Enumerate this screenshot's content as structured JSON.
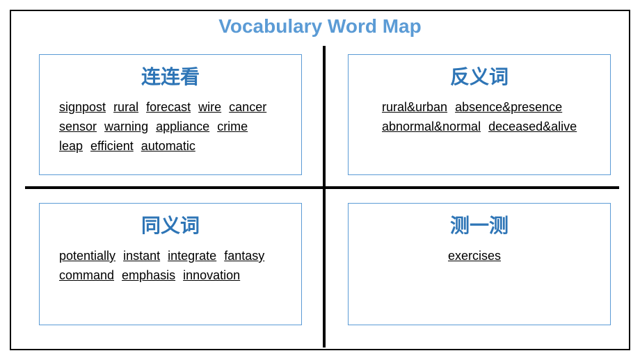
{
  "title": "Vocabulary Word Map",
  "title_color": "#5b9bd5",
  "box_border_color": "#5b9bd5",
  "quad_title_color": "#2e75b6",
  "cross_color": "#000000",
  "outer_border_color": "#000000",
  "background_color": "#ffffff",
  "text_color": "#000000",
  "title_fontsize": 28,
  "quad_title_fontsize": 28,
  "word_fontsize": 18,
  "quadrants": {
    "top_left": {
      "title": "连连看",
      "words": [
        "signpost",
        "rural",
        "forecast",
        "wire",
        "cancer",
        "sensor",
        "warning",
        "appliance",
        "crime",
        "leap",
        "efficient",
        "automatic"
      ]
    },
    "top_right": {
      "title": "反义词",
      "words": [
        "rural&urban",
        "absence&presence",
        "abnormal&normal",
        "deceased&alive"
      ]
    },
    "bottom_left": {
      "title": "同义词",
      "words": [
        "potentially",
        "instant",
        "integrate",
        "fantasy",
        "command",
        "emphasis",
        "innovation"
      ]
    },
    "bottom_right": {
      "title": "测一测",
      "words": [
        "exercises"
      ]
    }
  }
}
